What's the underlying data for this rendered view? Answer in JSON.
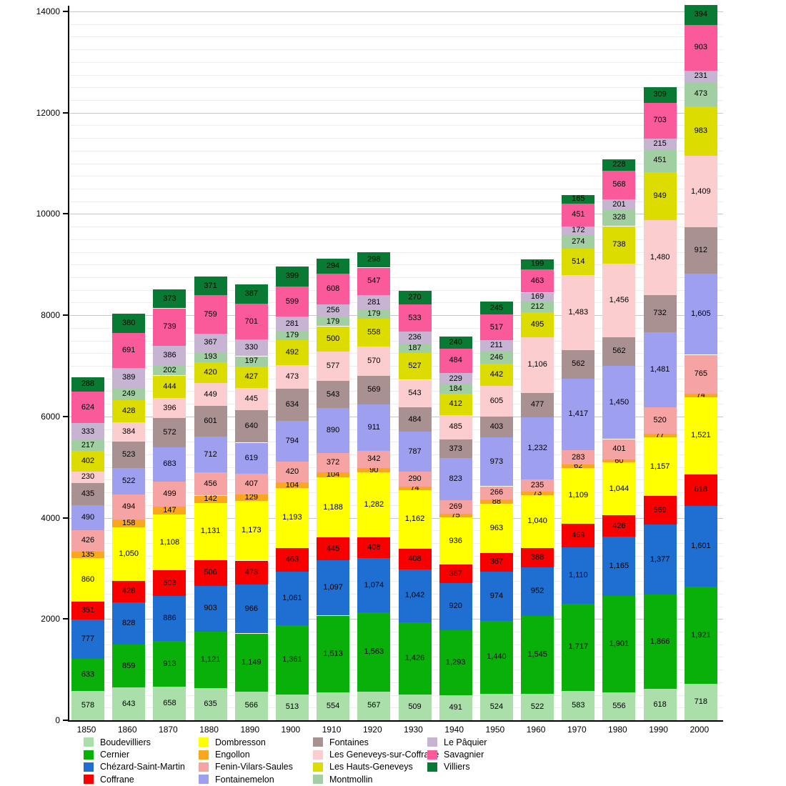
{
  "chart_data": {
    "type": "bar",
    "stacked": true,
    "title": "",
    "xlabel": "",
    "ylabel": "",
    "grid": true,
    "legend_position": "bottom",
    "y_axis": {
      "min": 0,
      "max": 14000,
      "major_step": 2000,
      "minor_step": 250,
      "major_ticks": [
        0,
        2000,
        4000,
        6000,
        8000,
        10000,
        12000,
        14000
      ]
    },
    "x": [
      "1850",
      "1860",
      "1870",
      "1880",
      "1890",
      "1900",
      "1910",
      "1920",
      "1930",
      "1940",
      "1950",
      "1960",
      "1970",
      "1980",
      "1990",
      "2000"
    ],
    "series": [
      {
        "name": "Boudevilliers",
        "color": "#aadfaa",
        "values": [
          578,
          643,
          658,
          635,
          566,
          513,
          554,
          567,
          509,
          491,
          524,
          522,
          583,
          556,
          618,
          718
        ]
      },
      {
        "name": "Cernier",
        "color": "#0ab00a",
        "values": [
          633,
          859,
          913,
          1121,
          1149,
          1361,
          1513,
          1563,
          1426,
          1293,
          1440,
          1545,
          1717,
          1901,
          1866,
          1921
        ]
      },
      {
        "name": "Chézard-Saint-Martin",
        "color": "#1e6fd1",
        "values": [
          777,
          828,
          886,
          903,
          966,
          1061,
          1097,
          1074,
          1042,
          920,
          974,
          952,
          1110,
          1165,
          1377,
          1601
        ]
      },
      {
        "name": "Coffrane",
        "color": "#f80000",
        "values": [
          351,
          428,
          503,
          506,
          473,
          463,
          445,
          408,
          408,
          367,
          367,
          388,
          469,
          426,
          569,
          618
        ]
      },
      {
        "name": "Dombresson",
        "color": "#ffff00",
        "values": [
          860,
          1050,
          1108,
          1131,
          1173,
          1193,
          1188,
          1282,
          1162,
          936,
          963,
          1040,
          1109,
          1044,
          1157,
          1521
        ]
      },
      {
        "name": "Engollon",
        "color": "#faa61e",
        "values": [
          135,
          158,
          147,
          142,
          129,
          104,
          104,
          90,
          74,
          75,
          88,
          73,
          62,
          60,
          77,
          74
        ]
      },
      {
        "name": "Fenin-Vilars-Saules",
        "color": "#f5a3a3",
        "values": [
          426,
          494,
          499,
          456,
          407,
          420,
          372,
          342,
          290,
          269,
          266,
          235,
          283,
          401,
          520,
          765
        ]
      },
      {
        "name": "Fontainemelon",
        "color": "#9f9ff0",
        "values": [
          490,
          522,
          683,
          712,
          619,
          794,
          890,
          911,
          787,
          823,
          973,
          1232,
          1417,
          1450,
          1481,
          1605
        ]
      },
      {
        "name": "Fontaines",
        "color": "#a99191",
        "values": [
          435,
          523,
          572,
          601,
          640,
          634,
          543,
          569,
          484,
          373,
          403,
          477,
          562,
          562,
          732,
          912
        ]
      },
      {
        "name": "Les Geneveys-sur-Coffrane",
        "color": "#fbcdce",
        "values": [
          230,
          384,
          396,
          449,
          445,
          473,
          577,
          570,
          543,
          485,
          605,
          1106,
          1483,
          1456,
          1480,
          1409
        ]
      },
      {
        "name": "Les Hauts-Geneveys",
        "color": "#dcdc00",
        "values": [
          402,
          428,
          444,
          420,
          427,
          492,
          500,
          558,
          527,
          412,
          442,
          495,
          514,
          738,
          949,
          983
        ]
      },
      {
        "name": "Montmollin",
        "color": "#a2cfa2",
        "values": [
          217,
          249,
          202,
          193,
          197,
          179,
          179,
          179,
          187,
          184,
          246,
          212,
          274,
          328,
          451,
          473
        ]
      },
      {
        "name": "Le Pâquier",
        "color": "#c7b4d3",
        "values": [
          333,
          389,
          386,
          367,
          330,
          281,
          256,
          281,
          236,
          229,
          211,
          169,
          172,
          201,
          215,
          231
        ]
      },
      {
        "name": "Savagnier",
        "color": "#fa5a9a",
        "values": [
          624,
          691,
          739,
          759,
          701,
          599,
          608,
          547,
          533,
          484,
          517,
          463,
          451,
          568,
          703,
          903
        ]
      },
      {
        "name": "Villiers",
        "color": "#097a33",
        "values": [
          288,
          380,
          373,
          371,
          387,
          399,
          294,
          298,
          270,
          240,
          245,
          199,
          165,
          228,
          309,
          394
        ]
      }
    ],
    "legend_columns": 4,
    "legend_rows_per_column": 4
  }
}
